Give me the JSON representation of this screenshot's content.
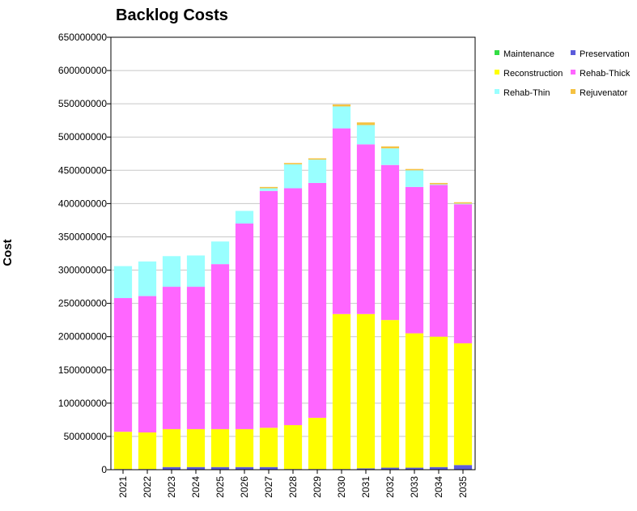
{
  "chart_data": {
    "type": "bar",
    "stacked": true,
    "title": "Backlog Costs",
    "xlabel": "",
    "ylabel": "Cost",
    "ylim": [
      0,
      650000000
    ],
    "y_ticks": [
      0,
      50000000,
      100000000,
      150000000,
      200000000,
      250000000,
      300000000,
      350000000,
      400000000,
      450000000,
      500000000,
      550000000,
      600000000,
      650000000
    ],
    "y_tick_labels": [
      "0",
      "50000000",
      "100000000",
      "150000000",
      "200000000",
      "250000000",
      "300000000",
      "350000000",
      "400000000",
      "450000000",
      "500000000",
      "550000000",
      "600000000",
      "650000000"
    ],
    "grid": true,
    "legend_position": "top-right",
    "categories": [
      "2021",
      "2022",
      "2023",
      "2024",
      "2025",
      "2026",
      "2027",
      "2028",
      "2029",
      "2030",
      "2031",
      "2032",
      "2033",
      "2034",
      "2035"
    ],
    "series": [
      {
        "name": "Preservation",
        "color": "#5b5bdb",
        "values": [
          1000000,
          1000000,
          4000000,
          4000000,
          4000000,
          4000000,
          4000000,
          1000000,
          1000000,
          1000000,
          2000000,
          3000000,
          3000000,
          4000000,
          7000000
        ]
      },
      {
        "name": "Maintenance",
        "color": "#33dd44",
        "values": [
          0,
          0,
          0,
          0,
          0,
          0,
          0,
          0,
          0,
          0,
          0,
          0,
          0,
          0,
          0
        ]
      },
      {
        "name": "Reconstruction",
        "color": "#ffff00",
        "values": [
          56000000,
          55000000,
          57000000,
          57000000,
          57000000,
          57000000,
          59000000,
          66000000,
          77000000,
          233000000,
          232000000,
          222000000,
          202000000,
          196000000,
          183000000
        ]
      },
      {
        "name": "Rehab-Thick",
        "color": "#ff66ff",
        "values": [
          201000000,
          205000000,
          214000000,
          214000000,
          248000000,
          309000000,
          356000000,
          356000000,
          353000000,
          279000000,
          255000000,
          233000000,
          220000000,
          228000000,
          209000000
        ]
      },
      {
        "name": "Rehab-Thin",
        "color": "#99ffff",
        "values": [
          48000000,
          52000000,
          46000000,
          47000000,
          34000000,
          19000000,
          4000000,
          36000000,
          35000000,
          33000000,
          29000000,
          25000000,
          25000000,
          1000000,
          1000000
        ]
      },
      {
        "name": "Rejuvenator",
        "color": "#f5c242",
        "values": [
          0,
          0,
          0,
          0,
          0,
          0,
          2000000,
          2000000,
          2000000,
          3000000,
          4000000,
          3000000,
          2000000,
          2000000,
          2000000
        ]
      }
    ],
    "legend_order": [
      "Maintenance",
      "Preservation",
      "Reconstruction",
      "Rehab-Thick",
      "Rehab-Thin",
      "Rejuvenator"
    ]
  }
}
